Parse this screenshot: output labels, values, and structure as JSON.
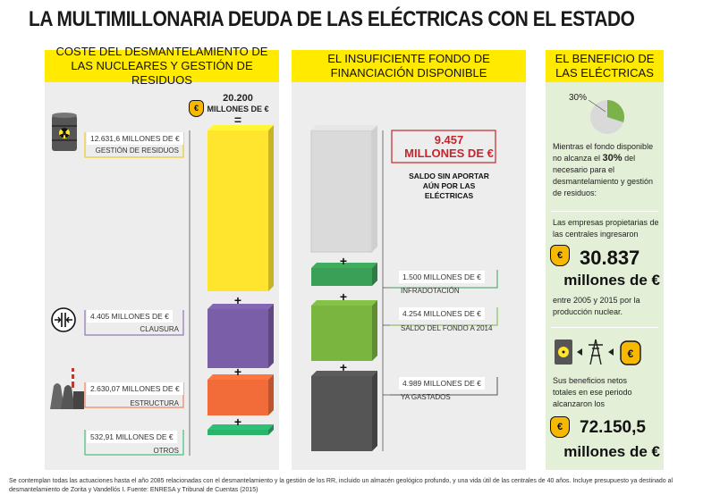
{
  "title": "LA MULTIMILLONARIA DEUDA DE LAS ELÉCTRICAS CON EL ESTADO",
  "headers": {
    "left": "COSTE DEL DESMANTELAMIENTO DE LAS NUCLEARES Y GESTIÓN DE RESIDUOS",
    "middle": "EL INSUFICIENTE FONDO DE FINANCIACIÓN DISPONIBLE",
    "right": "EL BENEFICIO DE LAS ELÉCTRICAS"
  },
  "total": {
    "value": "20.200",
    "unit": "MILLONES DE €",
    "equals": "="
  },
  "plus": "+",
  "cost_labels": {
    "residuos_value": "12.631,6 MILLONES DE €",
    "residuos_name": "GESTIÓN DE RESIDUOS",
    "clausura_value": "4.405 MILLONES DE €",
    "clausura_name": "CLAUSURA",
    "estructura_value": "2.630,07 MILLONES DE €",
    "estructura_name": "ESTRUCTURA",
    "otros_value": "532,91 MILLONES DE €",
    "otros_name": "OTROS"
  },
  "fund_labels": {
    "gap_value": "9.457",
    "gap_unit": "MILLONES DE €",
    "gap_desc": "SALDO SIN APORTAR AÚN POR LAS ELÉCTRICAS",
    "infra_value": "1.500 MILLONES DE €",
    "infra_name": "INFRADOTACIÓN",
    "saldo_value": "4.254 MILLONES DE €",
    "saldo_name": "SALDO DEL FONDO A 2014",
    "gastados_value": "4.989 MILLONES DE €",
    "gastados_name": "YA GASTADOS"
  },
  "side": {
    "pie_label": "30%",
    "pie_fraction": 0.3,
    "text1a": "Mientras el fondo disponible no alcanza el ",
    "text1b": "30%",
    "text1c": " del necesario para el desmantelamiento y gestión de residuos:",
    "text2": "Las empresas propietarias de las centrales ingresaron",
    "income_value": "30.837",
    "income_unit": "millones de €",
    "text3": "entre 2005 y 2015 por la producción nuclear.",
    "text4": "Sus beneficios netos totales en ese periodo alcanzaron los",
    "profit_value": "72.150,5",
    "profit_unit": "millones de €"
  },
  "footer": "Se contemplan todas las actuaciones hasta el año 2085 relacionadas con el desmantelamiento y la gestión de los RR, incluido un almacén geológico profundo, y una vida útil de las centrales de 40 años. Incluye presupuesto ya destinado al desmantelamiento de Zorita y Vandellós I. Fuente: ENRESA y Tribunal de Cuentas (2015)",
  "chart_data": [
    {
      "type": "bar",
      "title": "COSTE DEL DESMANTELAMIENTO DE LAS NUCLEARES Y GESTIÓN DE RESIDUOS",
      "stacked": true,
      "total": 20200,
      "unit": "millones de €",
      "categories": [
        "GESTIÓN DE RESIDUOS",
        "CLAUSURA",
        "ESTRUCTURA",
        "OTROS"
      ],
      "values": [
        12631.6,
        4405,
        2630.07,
        532.91
      ],
      "colors": [
        "#ffe52e",
        "#7b5ea8",
        "#f26c3a",
        "#29b36b"
      ]
    },
    {
      "type": "bar",
      "title": "EL INSUFICIENTE FONDO DE FINANCIACIÓN DISPONIBLE",
      "stacked": true,
      "unit": "millones de €",
      "categories": [
        "SALDO SIN APORTAR AÚN POR LAS ELÉCTRICAS",
        "INFRADOTACIÓN",
        "SALDO DEL FONDO A 2014",
        "YA GASTADOS"
      ],
      "values": [
        9457,
        1500,
        4254,
        4989
      ],
      "colors": [
        "#dadada",
        "#3a9f57",
        "#7ab540",
        "#555555"
      ]
    },
    {
      "type": "pie",
      "categories": [
        "fondo disponible",
        "resto"
      ],
      "values": [
        30,
        70
      ],
      "labels": [
        "30%"
      ],
      "colors": [
        "#7bb34a",
        "#d9d9d9"
      ]
    }
  ],
  "colors": {
    "header": "#ffea00",
    "panel": "#ededed",
    "side_panel": "#e3efd6",
    "gap_red": "#c1272d",
    "coin": "#f6b800"
  }
}
